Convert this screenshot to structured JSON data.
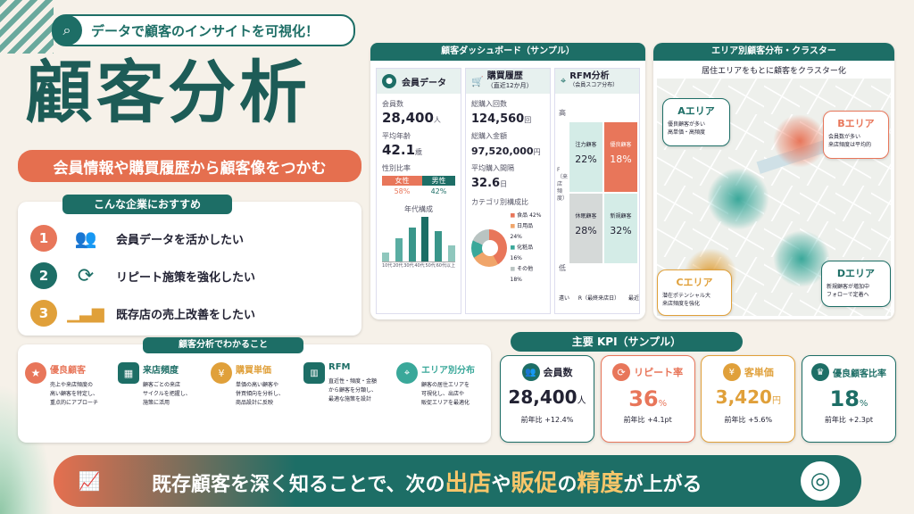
{
  "header": {
    "tagline": "データで顧客のインサイトを可視化！",
    "title": "顧客分析",
    "subtitle": "会員情報や購買履歴から顧客像をつかむ"
  },
  "recommend": {
    "title": "こんな企業におすすめ",
    "items": [
      {
        "num": "1",
        "text": "会員データを活かしたい"
      },
      {
        "num": "2",
        "text": "リピート施策を強化したい"
      },
      {
        "num": "3",
        "text": "既存店の売上改善をしたい"
      }
    ]
  },
  "dashboard": {
    "title": "顧客ダッシュボード（サンプル）",
    "member": {
      "title": "会員データ",
      "count_label": "会員数",
      "count": "28,400",
      "count_unit": "人",
      "age_label": "平均年齢",
      "age": "42.1",
      "age_unit": "歳",
      "gender_label": "性別比率",
      "female": "女性",
      "male": "男性",
      "female_pct": "58%",
      "male_pct": "42%",
      "age_chart_title": "年代構成",
      "age_ticks": [
        "10代",
        "20代",
        "30代",
        "40代",
        "50代",
        "60代以上"
      ]
    },
    "purchase": {
      "title": "購買履歴",
      "subtitle": "（直近12か月）",
      "count_label": "総購入回数",
      "count": "124,560",
      "count_unit": "回",
      "amount_label": "総購入金額",
      "amount": "97,520,000",
      "amount_unit": "円",
      "interval_label": "平均購入間隔",
      "interval": "32.6",
      "interval_unit": "日",
      "cat_title": "カテゴリ別構成比",
      "cats": [
        {
          "name": "食品",
          "pct": "42%",
          "color": "#e8765a"
        },
        {
          "name": "日用品",
          "pct": "24%",
          "color": "#f0a56a"
        },
        {
          "name": "化粧品",
          "pct": "16%",
          "color": "#3aa89a"
        },
        {
          "name": "その他",
          "pct": "18%",
          "color": "#b9c4c2"
        }
      ]
    },
    "rfm": {
      "title": "RFM分析",
      "subtitle": "（会員スコア分布）",
      "y_high": "高",
      "y_low": "低",
      "y_axis": "F（来店頻度）",
      "x_low": "遠い",
      "x_axis": "R（最終来店日）",
      "x_high": "最近",
      "cells": [
        {
          "name": "注力顧客",
          "pct": "22%"
        },
        {
          "name": "優良顧客",
          "pct": "18%"
        },
        {
          "name": "休眠顧客",
          "pct": "28%"
        },
        {
          "name": "新規顧客",
          "pct": "32%"
        }
      ]
    }
  },
  "area": {
    "title": "エリア別顧客分布・クラスター",
    "subtitle": "居住エリアをもとに顧客をクラスター化",
    "a": {
      "title": "Aエリア",
      "desc": "優良顧客が多い\n高単価・高頻度"
    },
    "b": {
      "title": "Bエリア",
      "desc": "会員数が多い\n来店頻度は平均的"
    },
    "c": {
      "title": "Cエリア",
      "desc": "潜在ポテンシャル大\n来店頻度を強化"
    },
    "d": {
      "title": "Dエリア",
      "desc": "新規顧客が増加中\nフォローで定着へ"
    }
  },
  "insights": {
    "title": "顧客分析でわかること",
    "items": [
      {
        "title": "優良顧客",
        "desc": "売上や来店頻度の\n高い顧客を特定し、\n重点的にアプローチ",
        "color": "#e8765a"
      },
      {
        "title": "来店頻度",
        "desc": "顧客ごとの来店\nサイクルを把握し、\n施策に活用",
        "color": "#1d6e66"
      },
      {
        "title": "購買単価",
        "desc": "単価の高い顧客や\n併買傾向を分析し、\n商品設計に反映",
        "color": "#e0a03a"
      },
      {
        "title": "RFM",
        "desc": "直近性・頻度・金額\nから顧客を分類し、\n最適な施策を設計",
        "color": "#1d6e66"
      },
      {
        "title": "エリア別分布",
        "desc": "顧客の居住エリアを\n可視化し、出店や\n販促エリアを最適化",
        "color": "#3aa89a"
      }
    ]
  },
  "kpi": {
    "title": "主要 KPI（サンプル）",
    "items": [
      {
        "label": "会員数",
        "value": "28,400",
        "unit": "人",
        "yoy": "前年比 +12.4%",
        "color": "#1d6e66"
      },
      {
        "label": "リピート率",
        "value": "36",
        "unit": "%",
        "yoy": "前年比 +4.1pt",
        "color": "#e8765a"
      },
      {
        "label": "客単価",
        "value": "3,420",
        "unit": "円",
        "yoy": "前年比 +5.6%",
        "color": "#e0a03a"
      },
      {
        "label": "優良顧客比率",
        "value": "18",
        "unit": "%",
        "yoy": "前年比 +2.3pt",
        "color": "#1d6e66"
      }
    ]
  },
  "footer": {
    "p1": "既存顧客を深く知ることで、次の",
    "h1": "出店",
    "p2": "や",
    "h2": "販促",
    "p3": "の",
    "h3": "精度",
    "p4": "が上がる"
  }
}
